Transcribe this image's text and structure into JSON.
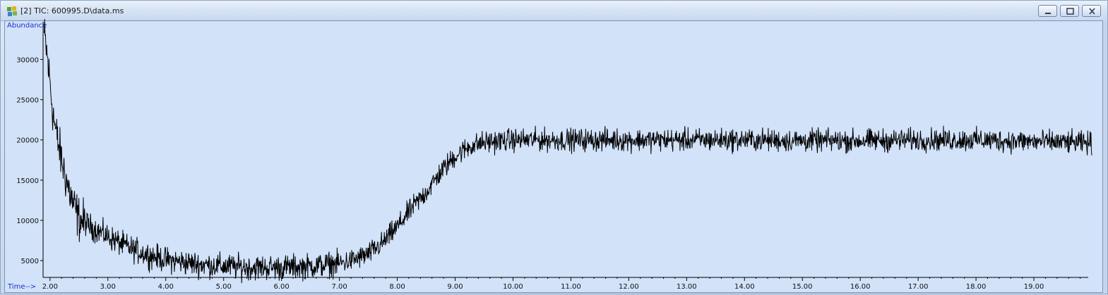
{
  "window": {
    "title": "[2] TIC: 600995.D\\data.ms",
    "icon": "chromatogram-app-icon",
    "controls": [
      "minimize",
      "maximize",
      "close"
    ]
  },
  "chart_data": {
    "type": "line",
    "ylabel": "Abundance",
    "xlabel": "Time-->",
    "xlim": [
      1.88,
      20.0
    ],
    "ylim": [
      3000,
      33800
    ],
    "x_ticks": [
      "2.00",
      "3.00",
      "4.00",
      "5.00",
      "6.00",
      "7.00",
      "8.00",
      "9.00",
      "10.00",
      "11.00",
      "12.00",
      "13.00",
      "14.00",
      "15.00",
      "16.00",
      "17.00",
      "18.00",
      "19.00"
    ],
    "y_ticks": [
      "5000",
      "10000",
      "15000",
      "20000",
      "25000",
      "30000"
    ],
    "grid": false,
    "line_color": "#000000",
    "series": [
      {
        "x": [
          1.9,
          1.95,
          2.0,
          2.05,
          2.1,
          2.2,
          2.3,
          2.4,
          2.5,
          2.75,
          3.0,
          3.25,
          3.5,
          3.75,
          4.0,
          4.5,
          5.0,
          5.5,
          6.0,
          6.5,
          7.0,
          7.25,
          7.5,
          7.75,
          8.0,
          8.25,
          8.5,
          8.75,
          9.0,
          9.25,
          9.5,
          10.0,
          11.0,
          12.0,
          13.0,
          14.0,
          15.0,
          16.0,
          17.0,
          18.0,
          19.0,
          20.0
        ],
        "values": [
          33000,
          30500,
          27000,
          23500,
          21000,
          17500,
          14500,
          12000,
          10200,
          9000,
          8000,
          7000,
          6200,
          5600,
          5100,
          4600,
          4300,
          4150,
          4150,
          4300,
          4650,
          5100,
          5800,
          7200,
          9200,
          11500,
          13500,
          16000,
          18000,
          19200,
          19700,
          20000,
          20000,
          20000,
          20000,
          20000,
          19900,
          19900,
          20000,
          20000,
          19800,
          19600
        ]
      }
    ],
    "noise_amplitude": 1100
  }
}
